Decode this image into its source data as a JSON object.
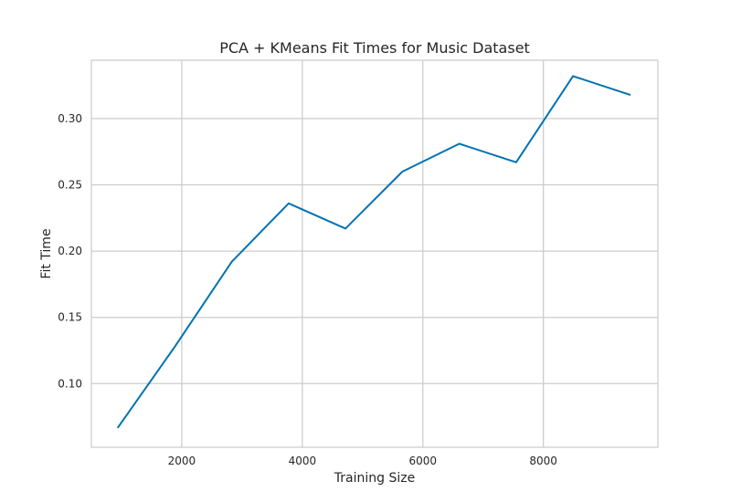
{
  "chart_data": {
    "type": "line",
    "title": "PCA + KMeans Fit Times for Music Dataset",
    "xlabel": "Training Size",
    "ylabel": "Fit Time",
    "xlim": [
      500,
      9900
    ],
    "ylim": [
      0.052,
      0.344
    ],
    "xticks": [
      2000,
      4000,
      6000,
      8000
    ],
    "xtick_labels": [
      "2000",
      "4000",
      "6000",
      "8000"
    ],
    "yticks": [
      0.1,
      0.15,
      0.2,
      0.25,
      0.3
    ],
    "ytick_labels": [
      "0.10",
      "0.15",
      "0.20",
      "0.25",
      "0.30"
    ],
    "grid": true,
    "series": [
      {
        "color": "#0072b2",
        "x": [
          943,
          1887,
          2830,
          3774,
          4717,
          5661,
          6604,
          7548,
          8491,
          9435
        ],
        "y": [
          0.067,
          0.128,
          0.192,
          0.236,
          0.217,
          0.26,
          0.281,
          0.267,
          0.332,
          0.318
        ]
      }
    ]
  }
}
